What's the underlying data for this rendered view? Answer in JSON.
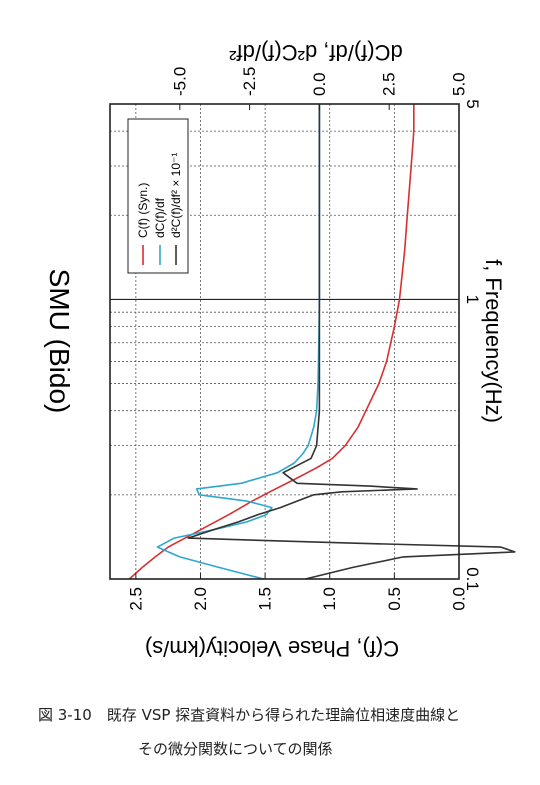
{
  "caption": {
    "line1": "図 3-10　既存 VSP 探査資料から得られた理論位相速度曲線と",
    "line2": "その微分関数についての関係"
  },
  "chart_data": {
    "type": "line",
    "title": "SMU (Bido)",
    "xlabel": "f, Frequency(Hz)",
    "ylabel_left": "C(f), Phase Velocity(km/s)",
    "ylabel_right": "dC(f)/df, d²C(f)/df²",
    "x_scale": "log",
    "xlim": [
      0.1,
      5
    ],
    "ylim_left": [
      0,
      2.7
    ],
    "ylim_right": [
      -7.5,
      5
    ],
    "x_ticks": [
      {
        "value": 0.1,
        "label": "0.1"
      },
      {
        "value": 1,
        "label": "1"
      },
      {
        "value": 5,
        "label": "5"
      }
    ],
    "y_ticks_left": [
      "0.0",
      "0.5",
      "1.0",
      "1.5",
      "2.0",
      "2.5"
    ],
    "y_ticks_right": [
      "-5.0",
      "-2.5",
      "0.0",
      "2.5",
      "5.0"
    ],
    "grid": true,
    "legend_position": "top-left",
    "legend": {
      "c": "C(f)  (Syn.)",
      "dc": "dC(f)/df",
      "d2c": "d²C(f)/df² × 10⁻¹"
    },
    "series": [
      {
        "name": "C(f)  (Syn.)",
        "axis": "left",
        "color": "#d83030",
        "x": [
          0.1,
          0.11,
          0.12,
          0.13,
          0.15,
          0.17,
          0.19,
          0.21,
          0.23,
          0.25,
          0.27,
          0.3,
          0.35,
          0.4,
          0.5,
          0.6,
          0.8,
          1.0,
          1.5,
          2.0,
          3.0,
          4.0,
          5.0
        ],
        "values": [
          2.55,
          2.45,
          2.35,
          2.25,
          2.0,
          1.78,
          1.6,
          1.42,
          1.25,
          1.1,
          0.98,
          0.88,
          0.78,
          0.72,
          0.62,
          0.56,
          0.5,
          0.46,
          0.42,
          0.4,
          0.37,
          0.35,
          0.35
        ]
      },
      {
        "name": "dC(f)/df",
        "axis": "right",
        "color": "#2ea7cf",
        "x": [
          0.1,
          0.11,
          0.12,
          0.13,
          0.14,
          0.15,
          0.16,
          0.17,
          0.18,
          0.19,
          0.2,
          0.21,
          0.22,
          0.24,
          0.26,
          0.28,
          0.3,
          0.35,
          0.4,
          0.5,
          0.7,
          1.0,
          2.0,
          5.0
        ],
        "values": [
          -2.0,
          -3.6,
          -5.0,
          -5.8,
          -5.2,
          -3.8,
          -2.6,
          -1.9,
          -1.7,
          -2.6,
          -4.3,
          -4.4,
          -2.8,
          -1.5,
          -0.9,
          -0.6,
          -0.4,
          -0.2,
          -0.1,
          -0.05,
          -0.02,
          0.0,
          0.0,
          0.0
        ]
      },
      {
        "name": "d²C(f)/df² × 10⁻¹",
        "axis": "right",
        "color": "#333333",
        "x": [
          0.1,
          0.11,
          0.12,
          0.125,
          0.13,
          0.135,
          0.14,
          0.15,
          0.16,
          0.17,
          0.18,
          0.19,
          0.2,
          0.205,
          0.21,
          0.215,
          0.22,
          0.24,
          0.27,
          0.3,
          0.4,
          0.5,
          0.7,
          1.0,
          2.0,
          5.0
        ],
        "values": [
          -0.5,
          1.2,
          3.0,
          7.0,
          6.5,
          0.5,
          -4.7,
          -3.8,
          -2.9,
          -2.2,
          -1.4,
          -0.8,
          -0.2,
          0.8,
          3.5,
          1.8,
          -0.8,
          -1.3,
          -0.3,
          -0.1,
          0.0,
          0.0,
          0.0,
          0.0,
          0.0,
          0.0
        ]
      }
    ]
  }
}
